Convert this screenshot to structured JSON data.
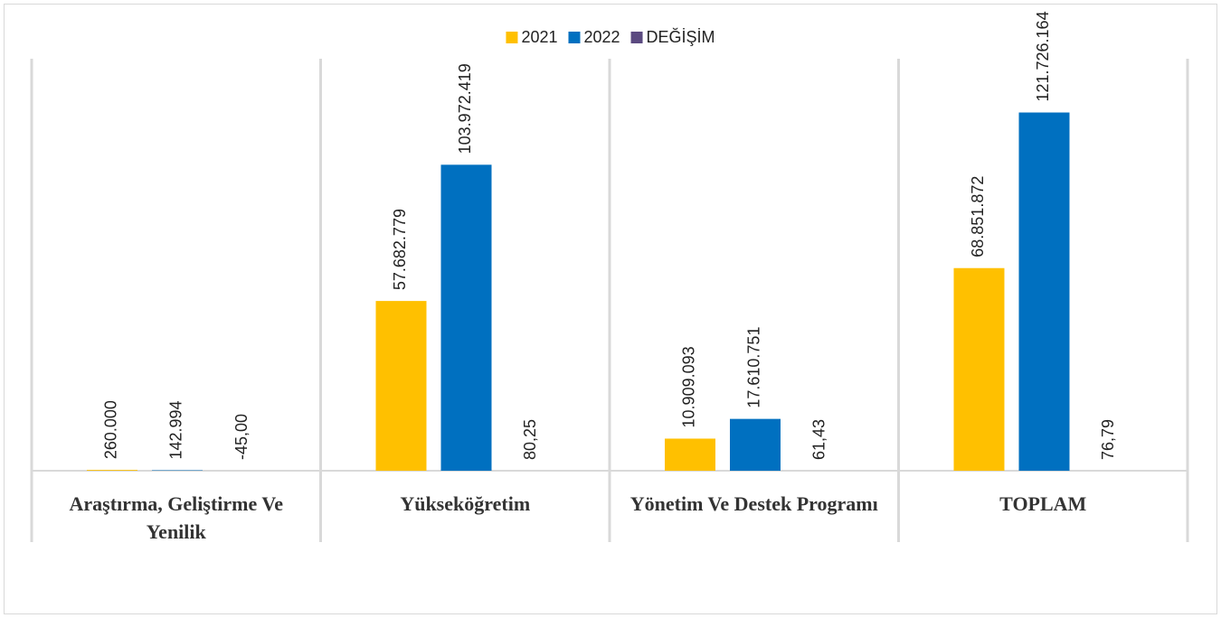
{
  "chart_data": {
    "type": "bar",
    "categories": [
      "Araştırma, Geliştirme Ve Yenilik",
      "Yükseköğretim",
      "Yönetim Ve Destek Programı",
      "TOPLAM"
    ],
    "series": [
      {
        "name": "2021",
        "color": "#ffc000",
        "values": [
          260000,
          57682779,
          10909093,
          68851872
        ],
        "value_labels": [
          "260.000",
          "57.682.779",
          "10.909.093",
          "68.851.872"
        ]
      },
      {
        "name": "2022",
        "color": "#0070c0",
        "values": [
          142994,
          103972419,
          17610751,
          121726164
        ],
        "value_labels": [
          "142.994",
          "103.972.419",
          "17.610.751",
          "121.726.164"
        ]
      },
      {
        "name": "DEĞİŞİM",
        "color": "#5b4a80",
        "values": [
          -45,
          80.25,
          61.43,
          76.79
        ],
        "value_labels": [
          "-45,00",
          "80,25",
          "61,43",
          "76,79"
        ]
      }
    ],
    "ylim": [
      0,
      140000000
    ],
    "legend": "top"
  }
}
